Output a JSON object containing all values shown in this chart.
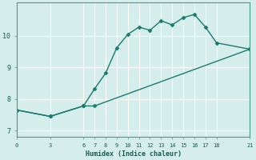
{
  "xlabel": "Humidex (Indice chaleur)",
  "bg_color": "#d5eeeb",
  "line_color": "#1a7a6e",
  "grid_color": "#c5e8e5",
  "xlim": [
    0,
    21
  ],
  "ylim": [
    6.8,
    11.05
  ],
  "xticks": [
    0,
    3,
    6,
    7,
    8,
    9,
    10,
    11,
    12,
    13,
    14,
    15,
    16,
    17,
    18,
    21
  ],
  "yticks": [
    7,
    8,
    9,
    10
  ],
  "upper_curve_x": [
    0,
    3,
    6,
    7,
    8,
    9,
    10,
    11,
    12,
    13,
    14,
    15,
    16,
    17,
    18,
    21
  ],
  "upper_curve_y": [
    7.65,
    7.45,
    7.78,
    8.32,
    8.82,
    9.62,
    10.05,
    10.28,
    10.18,
    10.48,
    10.35,
    10.58,
    10.68,
    10.28,
    9.78,
    9.58
  ],
  "lower_curve_x": [
    0,
    3,
    6,
    7,
    21
  ],
  "lower_curve_y": [
    7.65,
    7.45,
    7.78,
    7.78,
    9.58
  ],
  "marker": "D",
  "markersize": 2.5,
  "linewidth": 1.0
}
